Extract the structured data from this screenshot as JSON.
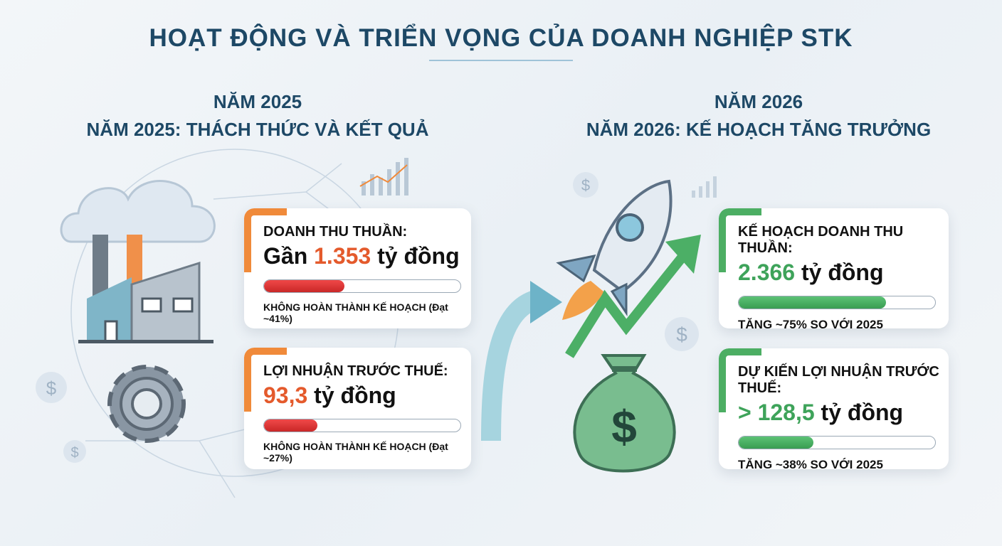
{
  "title": "HOẠT ĐỘNG VÀ TRIỂN VỌNG CỦA DOANH NGHIỆP STK",
  "left": {
    "heading1": "NĂM 2025",
    "heading2": "NĂM 2025: THÁCH THỨC VÀ KẾT QUẢ",
    "cards": [
      {
        "label": "DOANH THU THUẦN:",
        "prefix": "Gần ",
        "number": "1.353",
        "unit": " tỷ đồng",
        "progress_percent": 41,
        "note": "KHÔNG HOÀN THÀNH KẾ HOẠCH (Đạt ~41%)"
      },
      {
        "label": "LỢI NHUẬN TRƯỚC THUẾ:",
        "prefix": "",
        "number": "93,3",
        "unit": " tỷ đồng",
        "progress_percent": 27,
        "note": "KHÔNG HOÀN THÀNH KẾ HOẠCH (Đạt ~27%)"
      }
    ]
  },
  "right": {
    "heading1": "NĂM 2026",
    "heading2": "NĂM 2026: KẾ HOẠCH TĂNG TRƯỞNG",
    "cards": [
      {
        "label": "KẾ HOẠCH DOANH THU THUẦN:",
        "prefix": "",
        "number": "2.366",
        "unit": " tỷ đồng",
        "progress_percent": 75,
        "note": "TĂNG ~75% SO VỚI 2025"
      },
      {
        "label": "DỰ KIẾN LỢI NHUẬN TRƯỚC THUẾ:",
        "prefix": "",
        "number": "> 128,5",
        "unit": " tỷ đồng",
        "progress_percent": 38,
        "note": "TĂNG ~38% SO VỚI 2025"
      }
    ]
  },
  "colors": {
    "title": "#1d4866",
    "negative": "#e45a2c",
    "positive": "#3ea35a",
    "accent_orange": "#f08a3a",
    "accent_green": "#4cae63"
  },
  "icons": [
    "cloud-icon",
    "factory-icon",
    "gear-icon",
    "dollar-coin-icon",
    "bar-chart-icon",
    "rocket-icon",
    "money-bag-icon",
    "growth-arrow-icon",
    "curved-arrow-icon"
  ]
}
